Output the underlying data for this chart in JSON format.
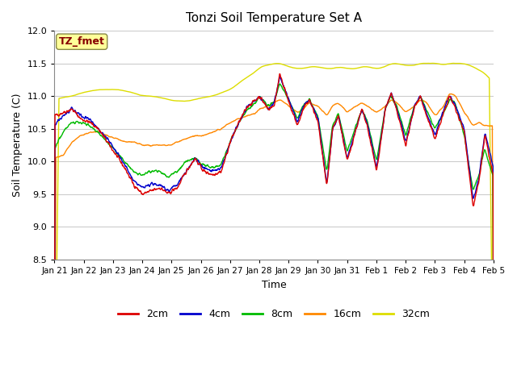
{
  "title": "Tonzi Soil Temperature Set A",
  "xlabel": "Time",
  "ylabel": "Soil Temperature (C)",
  "ylim": [
    8.5,
    12.0
  ],
  "yticks": [
    8.5,
    9.0,
    9.5,
    10.0,
    10.5,
    11.0,
    11.5,
    12.0
  ],
  "xtick_labels": [
    "Jan 21",
    "Jan 22",
    "Jan 23",
    "Jan 24",
    "Jan 25",
    "Jan 26",
    "Jan 27",
    "Jan 28",
    "Jan 29",
    "Jan 30",
    "Jan 31",
    "Feb 1",
    "Feb 2",
    "Feb 3",
    "Feb 4",
    "Feb 5"
  ],
  "n_days": 15,
  "colors": {
    "2cm": "#dd0000",
    "4cm": "#0000cc",
    "8cm": "#00bb00",
    "16cm": "#ff8800",
    "32cm": "#dddd00"
  },
  "legend_labels": [
    "2cm",
    "4cm",
    "8cm",
    "16cm",
    "32cm"
  ],
  "label_box_text": "TZ_fmet",
  "label_box_color": "#ffff99",
  "label_box_edge": "#880000",
  "grid_color": "#ffffff",
  "linewidth": 1.0,
  "figwidth": 6.4,
  "figheight": 4.8,
  "dpi": 100
}
